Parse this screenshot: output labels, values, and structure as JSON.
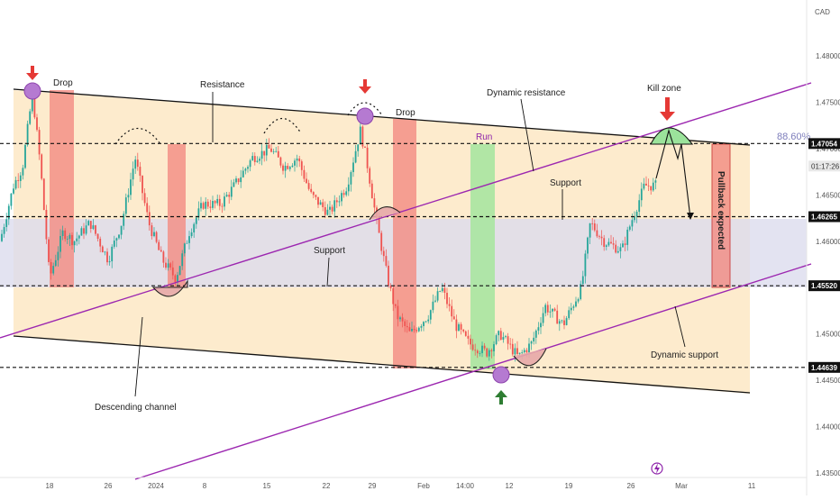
{
  "chart_data": {
    "type": "candlestick",
    "currency": "CAD",
    "x_ticks": [
      "18",
      "26",
      "2024",
      "8",
      "15",
      "22",
      "29",
      "Feb",
      "14:00",
      "12",
      "19",
      "26",
      "Mar",
      "11"
    ],
    "y_ticks": [
      "1.48000",
      "1.47500",
      "1.47000",
      "1.46500",
      "1.46000",
      "1.45500",
      "1.45000",
      "1.44500",
      "1.44000",
      "1.43500"
    ],
    "ylim": [
      1.4335,
      1.4835
    ],
    "levels": [
      {
        "label": "1.47054",
        "value": 1.47054
      },
      {
        "label": "1.46265",
        "value": 1.46265
      },
      {
        "label": "1.45520",
        "value": 1.4552
      },
      {
        "label": "1.44639",
        "value": 1.44639
      }
    ],
    "last_price_tag": {
      "label": "01:17:26",
      "value": 1.4685
    },
    "fib_label": "88.60%",
    "annotations": {
      "drop_1": "Drop",
      "drop_2": "Drop",
      "resistance": "Resistance",
      "dynamic_resistance": "Dynamic resistance",
      "kill_zone": "Kill zone",
      "run": "Run",
      "support_1": "Support",
      "support_2": "Support",
      "descending_channel": "Descending channel",
      "dynamic_support": "Dynamic support",
      "pullback_expected": "Pullback expected"
    },
    "colors": {
      "channel_fill": "#fde8c4",
      "range_fill": "#d9d9ea",
      "bull_candle": "#26a69a",
      "bear_candle": "#ef5350",
      "channel_line": "#111111",
      "purple_line": "#9c27b0",
      "drop_box": "#f28b82",
      "run_box": "#a8e6a1",
      "price_tag": "#111111",
      "arrow_down": "#e53935",
      "arrow_up": "#2e7d32"
    }
  }
}
